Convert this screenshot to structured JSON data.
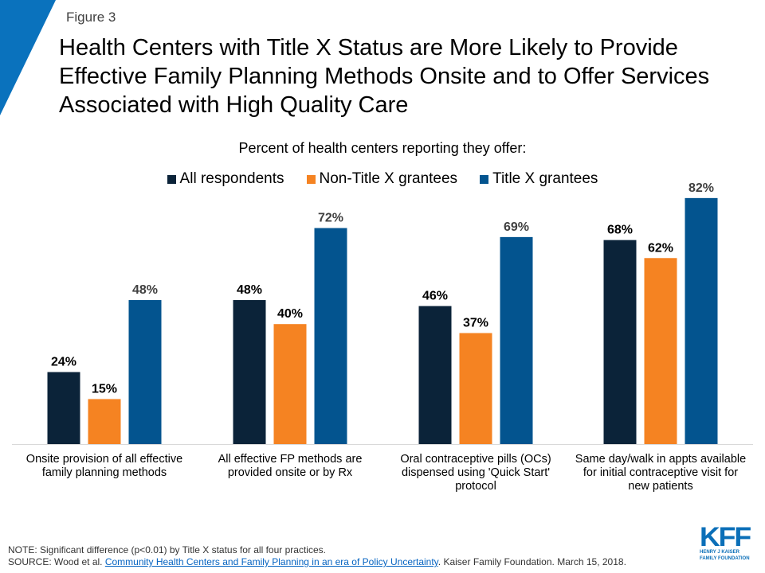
{
  "figure_label": "Figure 3",
  "title": "Health Centers with Title X Status are More Likely to Provide Effective Family Planning Methods Onsite and to Offer Services Associated with High Quality Care",
  "subtitle": "Percent of health centers reporting they offer:",
  "colors": {
    "accent_corner": "#0a72bd",
    "all_respondents": "#0b2339",
    "non_title_x": "#f58322",
    "title_x": "#03548f",
    "axis": "#d9d9d9"
  },
  "chart_data": {
    "type": "bar",
    "title": "Health Centers with Title X Status are More Likely to Provide Effective Family Planning Methods Onsite and to Offer Services Associated with High Quality Care",
    "subtitle": "Percent of health centers reporting they offer:",
    "xlabel": "",
    "ylabel": "",
    "ylim": [
      0,
      100
    ],
    "grid": false,
    "legend_position": "top-center",
    "categories": [
      "Onsite provision of all effective family planning methods",
      "All effective FP methods are provided onsite or by Rx",
      "Oral contraceptive pills (OCs) dispensed using 'Quick Start' protocol",
      "Same day/walk in appts available for initial contraceptive visit for new patients"
    ],
    "series": [
      {
        "name": "All respondents",
        "color": "#0b2339",
        "label_color": "#000000",
        "values": [
          24,
          48,
          46,
          68
        ],
        "labels": [
          "24%",
          "48%",
          "46%",
          "68%"
        ]
      },
      {
        "name": "Non-Title X grantees",
        "color": "#f58322",
        "label_color": "#000000",
        "values": [
          15,
          40,
          37,
          62
        ],
        "labels": [
          "15%",
          "40%",
          "37%",
          "62%"
        ]
      },
      {
        "name": "Title X grantees",
        "color": "#03548f",
        "label_color": "#404040",
        "values": [
          48,
          72,
          69,
          82
        ],
        "labels": [
          "48%",
          "72%",
          "69%",
          "82%"
        ]
      }
    ]
  },
  "note": "NOTE: Significant difference (p<0.01) by Title X status for all four practices.",
  "source": {
    "prefix": "SOURCE: Wood et al. ",
    "link_text": "Community Health Centers and Family Planning in an era of Policy Uncertainty",
    "suffix": ". Kaiser Family Foundation. March 15, 2018."
  },
  "logo": {
    "mark": "KFF",
    "line1": "HENRY J KAISER",
    "line2": "FAMILY FOUNDATION"
  }
}
